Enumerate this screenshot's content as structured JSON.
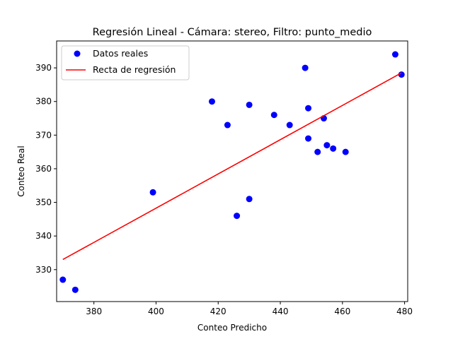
{
  "chart_data": {
    "type": "scatter",
    "title": "Regresión Lineal - Cámara: stereo, Filtro: punto_medio",
    "xlabel": "Conteo Predicho",
    "ylabel": "Conteo Real",
    "xlim": [
      368,
      481
    ],
    "ylim": [
      320.5,
      398
    ],
    "x_ticks": [
      380,
      400,
      420,
      440,
      460,
      480
    ],
    "y_ticks": [
      330,
      340,
      350,
      360,
      370,
      380,
      390
    ],
    "grid": false,
    "legend_position": "upper-left",
    "series": [
      {
        "name": "Datos reales",
        "kind": "scatter",
        "color": "#0000ff",
        "points": [
          {
            "x": 370,
            "y": 327
          },
          {
            "x": 374,
            "y": 324
          },
          {
            "x": 399,
            "y": 353
          },
          {
            "x": 418,
            "y": 380
          },
          {
            "x": 423,
            "y": 373
          },
          {
            "x": 426,
            "y": 346
          },
          {
            "x": 430,
            "y": 379
          },
          {
            "x": 430,
            "y": 351
          },
          {
            "x": 438,
            "y": 376
          },
          {
            "x": 443,
            "y": 373
          },
          {
            "x": 448,
            "y": 390
          },
          {
            "x": 449,
            "y": 378
          },
          {
            "x": 449,
            "y": 369
          },
          {
            "x": 452,
            "y": 365
          },
          {
            "x": 454,
            "y": 375
          },
          {
            "x": 455,
            "y": 367
          },
          {
            "x": 457,
            "y": 366
          },
          {
            "x": 461,
            "y": 365
          },
          {
            "x": 477,
            "y": 394
          },
          {
            "x": 479,
            "y": 388
          }
        ]
      },
      {
        "name": "Recta de regresión",
        "kind": "line",
        "color": "#ff0000",
        "points": [
          {
            "x": 370,
            "y": 333
          },
          {
            "x": 479,
            "y": 388.5
          }
        ]
      }
    ]
  }
}
